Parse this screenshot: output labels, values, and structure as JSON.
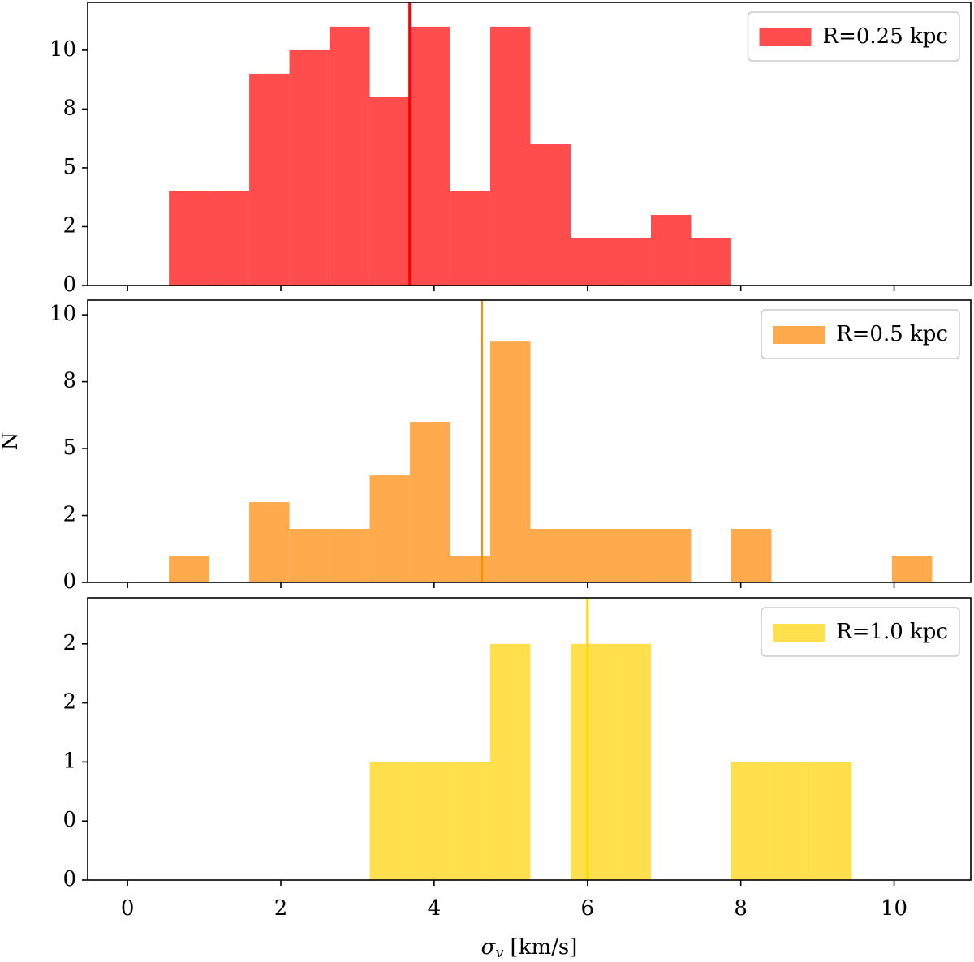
{
  "chart_data": [
    {
      "type": "histogram",
      "bins": [
        0.54,
        1.064,
        1.588,
        2.112,
        2.636,
        3.16,
        3.684,
        4.208,
        4.732,
        5.256,
        5.78,
        6.304,
        6.828,
        7.352,
        7.876,
        8.4,
        8.924,
        9.448,
        9.972,
        10.496
      ],
      "series": [
        {
          "name": "R=0.25 kpc",
          "color": "#ff4c4c",
          "values": [
            4,
            4,
            9,
            10,
            11,
            8,
            11,
            4,
            11,
            6,
            2,
            2,
            3,
            2,
            0,
            0,
            0,
            0,
            0
          ]
        }
      ],
      "vline": 3.68,
      "vline_color": "#ff0000",
      "xlim": [
        -0.52,
        11.0
      ],
      "xticks": [
        0,
        2,
        4,
        6,
        8,
        10
      ],
      "ylim": [
        0,
        12.03
      ],
      "yticks": [
        {
          "value": 0,
          "label": "0"
        },
        {
          "value": 2.5,
          "label": "2"
        },
        {
          "value": 5,
          "label": "5"
        },
        {
          "value": 7.5,
          "label": "8"
        },
        {
          "value": 10,
          "label": "10"
        }
      ],
      "legend": "upper right"
    },
    {
      "type": "histogram",
      "bins": [
        0.54,
        1.064,
        1.588,
        2.112,
        2.636,
        3.16,
        3.684,
        4.208,
        4.732,
        5.256,
        5.78,
        6.304,
        6.828,
        7.352,
        7.876,
        8.4,
        8.924,
        9.448,
        9.972,
        10.496
      ],
      "series": [
        {
          "name": "R=0.5 kpc",
          "color": "#ffaa4c",
          "values": [
            1,
            0,
            3,
            2,
            2,
            4,
            6,
            1,
            9,
            2,
            2,
            2,
            2,
            0,
            2,
            0,
            0,
            0,
            1
          ]
        }
      ],
      "vline": 4.62,
      "vline_color": "#ff8c00",
      "xlim": [
        -0.52,
        11.0
      ],
      "xticks": [
        0,
        2,
        4,
        6,
        8,
        10
      ],
      "ylim": [
        0,
        10.55
      ],
      "yticks": [
        {
          "value": 0,
          "label": "0"
        },
        {
          "value": 2.5,
          "label": "2"
        },
        {
          "value": 5,
          "label": "5"
        },
        {
          "value": 7.5,
          "label": "8"
        },
        {
          "value": 10,
          "label": "10"
        }
      ],
      "ylabel": "N",
      "legend": "upper right"
    },
    {
      "type": "histogram",
      "bins": [
        0.54,
        1.064,
        1.588,
        2.112,
        2.636,
        3.16,
        3.684,
        4.208,
        4.732,
        5.256,
        5.78,
        6.304,
        6.828,
        7.352,
        7.876,
        8.4,
        8.924,
        9.448,
        9.972,
        10.496
      ],
      "series": [
        {
          "name": "R=1.0 kpc",
          "color": "#ffe04c",
          "values": [
            0,
            0,
            0,
            0,
            0,
            1,
            1,
            1,
            2,
            0,
            2,
            2,
            0,
            0,
            1,
            1,
            1,
            0,
            0
          ]
        }
      ],
      "vline": 6.0,
      "vline_color": "#ffd700",
      "xlim": [
        -0.52,
        11.0
      ],
      "xticks": [
        0,
        2,
        4,
        6,
        8,
        10
      ],
      "ylim": [
        0,
        2.39
      ],
      "yticks": [
        {
          "value": 0,
          "label": "0"
        },
        {
          "value": 0.5,
          "label": "0"
        },
        {
          "value": 1,
          "label": "1"
        },
        {
          "value": 1.5,
          "label": "2"
        },
        {
          "value": 2,
          "label": "2"
        }
      ],
      "xlabel": {
        "symbol": "σ",
        "subscript": "v",
        "unit": "[km/s]"
      },
      "legend": "upper right"
    }
  ]
}
